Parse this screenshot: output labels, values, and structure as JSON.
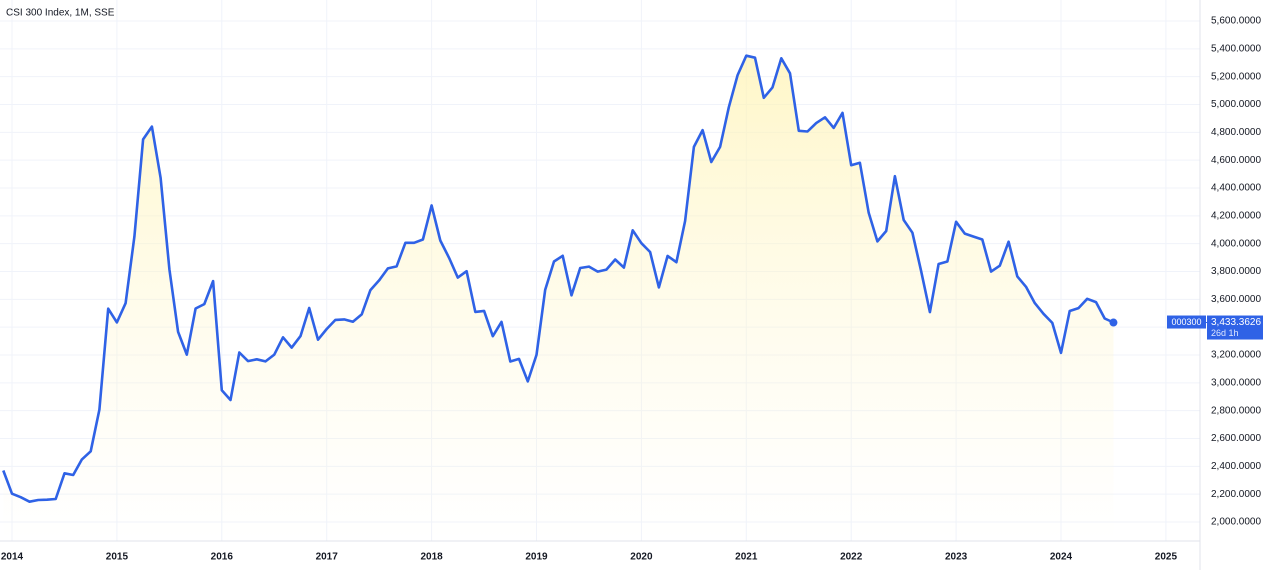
{
  "chart_data": {
    "type": "line",
    "title": "CSI 300 Index, 1M, SSE",
    "x": [
      "2013-12",
      "2014-01",
      "2014-02",
      "2014-03",
      "2014-04",
      "2014-05",
      "2014-06",
      "2014-07",
      "2014-08",
      "2014-09",
      "2014-10",
      "2014-11",
      "2014-12",
      "2015-01",
      "2015-02",
      "2015-03",
      "2015-04",
      "2015-05",
      "2015-06",
      "2015-07",
      "2015-08",
      "2015-09",
      "2015-10",
      "2015-11",
      "2015-12",
      "2016-01",
      "2016-02",
      "2016-03",
      "2016-04",
      "2016-05",
      "2016-06",
      "2016-07",
      "2016-08",
      "2016-09",
      "2016-10",
      "2016-11",
      "2016-12",
      "2017-01",
      "2017-02",
      "2017-03",
      "2017-04",
      "2017-05",
      "2017-06",
      "2017-07",
      "2017-08",
      "2017-09",
      "2017-10",
      "2017-11",
      "2017-12",
      "2018-01",
      "2018-02",
      "2018-03",
      "2018-04",
      "2018-05",
      "2018-06",
      "2018-07",
      "2018-08",
      "2018-09",
      "2018-10",
      "2018-11",
      "2018-12",
      "2019-01",
      "2019-02",
      "2019-03",
      "2019-04",
      "2019-05",
      "2019-06",
      "2019-07",
      "2019-08",
      "2019-09",
      "2019-10",
      "2019-11",
      "2019-12",
      "2020-01",
      "2020-02",
      "2020-03",
      "2020-04",
      "2020-05",
      "2020-06",
      "2020-07",
      "2020-08",
      "2020-09",
      "2020-10",
      "2020-11",
      "2020-12",
      "2021-01",
      "2021-02",
      "2021-03",
      "2021-04",
      "2021-05",
      "2021-06",
      "2021-07",
      "2021-08",
      "2021-09",
      "2021-10",
      "2021-11",
      "2021-12",
      "2022-01",
      "2022-02",
      "2022-03",
      "2022-04",
      "2022-05",
      "2022-06",
      "2022-07",
      "2022-08",
      "2022-09",
      "2022-10",
      "2022-11",
      "2022-12",
      "2023-01",
      "2023-02",
      "2023-03",
      "2023-04",
      "2023-05",
      "2023-06",
      "2023-07",
      "2023-08",
      "2023-09",
      "2023-10",
      "2023-11",
      "2023-12",
      "2024-01",
      "2024-02",
      "2024-03",
      "2024-04",
      "2024-05",
      "2024-06",
      "2024-07"
    ],
    "series": [
      {
        "name": "000300",
        "color": "#2f62e6",
        "values": [
          2370,
          2203,
          2178,
          2146,
          2158,
          2160,
          2165,
          2350,
          2338,
          2450,
          2508,
          2808,
          3533,
          3434,
          3572,
          4051,
          4749,
          4841,
          4473,
          3816,
          3366,
          3203,
          3534,
          3566,
          3731,
          2946,
          2877,
          3218,
          3156,
          3169,
          3154,
          3203,
          3327,
          3253,
          3336,
          3538,
          3310,
          3387,
          3452,
          3456,
          3439,
          3492,
          3666,
          3737,
          3822,
          3837,
          4006,
          4006,
          4030,
          4275,
          4023,
          3898,
          3756,
          3802,
          3510,
          3517,
          3335,
          3438,
          3153,
          3172,
          3010,
          3201,
          3669,
          3872,
          3913,
          3629,
          3825,
          3835,
          3799,
          3814,
          3886,
          3828,
          4096,
          4003,
          3940,
          3686,
          3912,
          3867,
          4163,
          4695,
          4816,
          4587,
          4695,
          4980,
          5211,
          5351,
          5336,
          5048,
          5123,
          5332,
          5224,
          4811,
          4806,
          4866,
          4908,
          4832,
          4940,
          4564,
          4581,
          4222,
          4016,
          4091,
          4485,
          4170,
          4079,
          3804,
          3508,
          3854,
          3872,
          4157,
          4072,
          4051,
          4030,
          3799,
          3842,
          4014,
          3765,
          3690,
          3573,
          3496,
          3431,
          3215,
          3516,
          3537,
          3604,
          3580,
          3462,
          3433.3626
        ],
        "last_value_label": "3,433.3626",
        "countdown": "26d 1h"
      }
    ],
    "xlim": [
      2013.92,
      2025.3
    ],
    "xticks": [
      2014,
      2015,
      2016,
      2017,
      2018,
      2019,
      2020,
      2021,
      2022,
      2023,
      2024,
      2025
    ],
    "ylim": [
      2000,
      5600
    ],
    "yticks": [
      {
        "value": 2000,
        "label": "2,000.0000"
      },
      {
        "value": 2200,
        "label": "2,200.0000"
      },
      {
        "value": 2400,
        "label": "2,400.0000"
      },
      {
        "value": 2600,
        "label": "2,600.0000"
      },
      {
        "value": 2800,
        "label": "2,800.0000"
      },
      {
        "value": 3000,
        "label": "3,000.0000"
      },
      {
        "value": 3200,
        "label": "3,200.0000"
      },
      {
        "value": 3400,
        "label": "3,400.0000"
      },
      {
        "value": 3600,
        "label": "3,600.0000"
      },
      {
        "value": 3800,
        "label": "3,800.0000"
      },
      {
        "value": 4000,
        "label": "4,000.0000"
      },
      {
        "value": 4200,
        "label": "4,200.0000"
      },
      {
        "value": 4400,
        "label": "4,400.0000"
      },
      {
        "value": 4600,
        "label": "4,600.0000"
      },
      {
        "value": 4800,
        "label": "4,800.0000"
      },
      {
        "value": 5000,
        "label": "5,000.0000"
      },
      {
        "value": 5200,
        "label": "5,200.0000"
      },
      {
        "value": 5400,
        "label": "5,400.0000"
      },
      {
        "value": 5600,
        "label": "5,600.0000"
      }
    ],
    "grid": true
  }
}
